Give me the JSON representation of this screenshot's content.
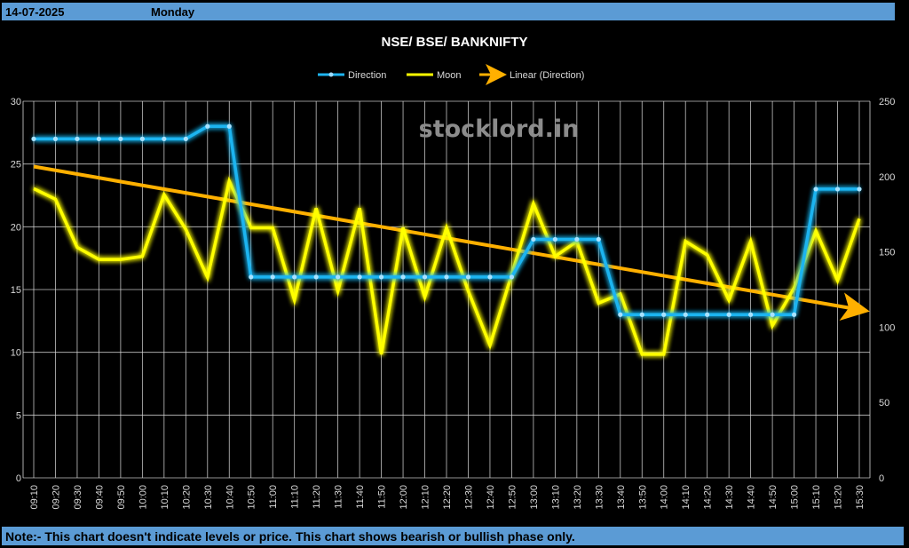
{
  "header": {
    "date": "14-07-2025",
    "day": "Monday"
  },
  "footer": {
    "note": "Note:- This chart doesn't indicate levels or price. This chart shows bearish or bullish phase only."
  },
  "watermark": "stocklord.in",
  "colors": {
    "direction": "#1eb4f0",
    "moon": "#ffff00",
    "trend": "#ffb000",
    "bar": "#5b9bd5",
    "grid": "#d9d9d9"
  },
  "chart_data": {
    "type": "line",
    "title": "NSE/ BSE/ BANKNIFTY",
    "legend_position": "top-center",
    "legend": [
      "Direction",
      "Moon",
      "Linear (Direction)"
    ],
    "categories": [
      "09:10",
      "09:20",
      "09:30",
      "09:40",
      "09:50",
      "10:00",
      "10:10",
      "10:20",
      "10:30",
      "10:40",
      "10:50",
      "11:00",
      "11:10",
      "11:20",
      "11:30",
      "11:40",
      "11:50",
      "12:00",
      "12:10",
      "12:20",
      "12:30",
      "12:40",
      "12:50",
      "13:00",
      "13:10",
      "13:20",
      "13:30",
      "13:40",
      "13:50",
      "14:00",
      "14:10",
      "14:20",
      "14:30",
      "14:40",
      "14:50",
      "15:00",
      "15:10",
      "15:20",
      "15:30"
    ],
    "y_left": {
      "min": 0,
      "max": 30,
      "ticks": [
        "0",
        "5",
        "10",
        "15",
        "20",
        "25",
        "30"
      ]
    },
    "y_right": {
      "min": 0,
      "max": 250,
      "ticks": [
        "0",
        "50",
        "100",
        "150",
        "200",
        "250"
      ]
    },
    "grid": true,
    "series": [
      {
        "name": "Direction",
        "axis": "left",
        "values": [
          27,
          27,
          27,
          27,
          27,
          27,
          27,
          27,
          28,
          28,
          16,
          16,
          16,
          16,
          16,
          16,
          16,
          16,
          16,
          16,
          16,
          16,
          16,
          19,
          19,
          19,
          19,
          13,
          13,
          13,
          13,
          13,
          13,
          13,
          13,
          13,
          23,
          23,
          23
        ]
      },
      {
        "name": "Moon",
        "axis": "right",
        "values": [
          192,
          185,
          153,
          145,
          145,
          147,
          188,
          165,
          133,
          197,
          166,
          166,
          118,
          179,
          124,
          179,
          82,
          166,
          120,
          166,
          124,
          88,
          135,
          182,
          147,
          157,
          116,
          122,
          82,
          82,
          157,
          148,
          118,
          157,
          101,
          126,
          164,
          131,
          172
        ]
      },
      {
        "name": "Linear (Direction)",
        "axis": "left",
        "type": "trendline",
        "start": 24.8,
        "end": 13.4
      }
    ]
  }
}
